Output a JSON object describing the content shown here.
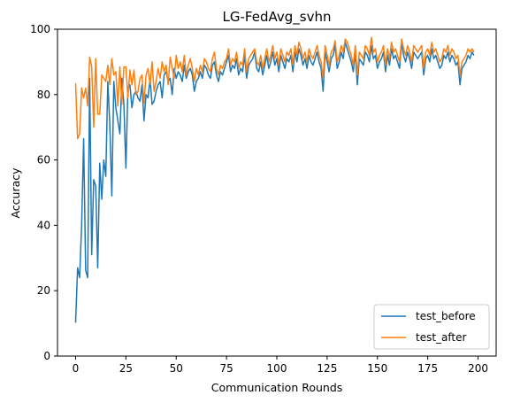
{
  "chart_data": {
    "type": "line",
    "title": "LG-FedAvg_svhn",
    "xlabel": "Communication Rounds",
    "ylabel": "Accuracy",
    "xlim": [
      -9,
      209
    ],
    "ylim": [
      0,
      100
    ],
    "xticks": [
      "0",
      "25",
      "50",
      "75",
      "100",
      "125",
      "150",
      "175",
      "200"
    ],
    "yticks": [
      "0",
      "20",
      "40",
      "60",
      "80",
      "100"
    ],
    "grid": false,
    "legend_position": "lower-right",
    "series": [
      {
        "name": "test_before",
        "color": "#1f77b4",
        "values": [
          10.2,
          27.0,
          24.0,
          40.0,
          66.5,
          26.2,
          24.0,
          85.0,
          31.0,
          54.0,
          52.0,
          27.0,
          59.0,
          48.0,
          60.0,
          55.0,
          84.0,
          71.0,
          49.0,
          84.0,
          76.0,
          72.0,
          68.0,
          85.0,
          77.0,
          57.5,
          82.0,
          83.0,
          76.0,
          80.0,
          81.0,
          79.0,
          78.0,
          83.0,
          72.0,
          80.0,
          79.0,
          85.0,
          77.0,
          78.0,
          81.0,
          83.0,
          84.0,
          79.0,
          86.0,
          87.0,
          84.0,
          85.0,
          80.0,
          88.0,
          85.0,
          87.0,
          86.0,
          84.0,
          89.0,
          85.0,
          87.0,
          88.0,
          86.0,
          81.0,
          84.0,
          85.0,
          87.0,
          85.0,
          89.0,
          88.0,
          86.0,
          85.0,
          89.0,
          90.0,
          86.0,
          84.0,
          87.0,
          86.0,
          88.0,
          90.0,
          92.0,
          87.0,
          89.0,
          88.0,
          91.0,
          86.0,
          88.0,
          87.0,
          92.0,
          85.0,
          89.0,
          90.0,
          91.0,
          93.0,
          88.0,
          87.0,
          90.0,
          86.0,
          89.0,
          92.0,
          88.0,
          90.0,
          93.0,
          89.0,
          91.0,
          87.0,
          92.0,
          90.0,
          88.0,
          91.0,
          90.0,
          92.0,
          87.0,
          93.0,
          90.0,
          94.0,
          92.0,
          89.0,
          91.0,
          88.0,
          92.0,
          90.0,
          89.0,
          91.0,
          93.0,
          90.0,
          88.0,
          81.0,
          93.0,
          90.0,
          87.0,
          91.0,
          92.0,
          95.0,
          88.0,
          90.0,
          93.0,
          91.0,
          96.0,
          94.0,
          92.0,
          90.0,
          87.0,
          93.0,
          83.0,
          91.0,
          90.0,
          89.0,
          93.0,
          92.0,
          90.0,
          95.0,
          91.0,
          92.0,
          88.0,
          90.0,
          91.0,
          93.0,
          87.0,
          92.0,
          89.0,
          94.0,
          91.0,
          92.0,
          90.0,
          88.0,
          96.0,
          92.0,
          90.0,
          93.0,
          91.0,
          88.0,
          93.0,
          92.0,
          91.0,
          92.0,
          93.0,
          86.0,
          91.0,
          92.0,
          90.0,
          94.0,
          91.0,
          92.0,
          90.0,
          88.0,
          89.0,
          92.0,
          91.0,
          93.0,
          90.0,
          92.0,
          91.0,
          89.0,
          90.0,
          83.0,
          88.0,
          89.0,
          90.0,
          92.0,
          91.0,
          93.0,
          92.0
        ],
        "comment": ""
      },
      {
        "name": "test_after",
        "color": "#ff7f0e",
        "values": [
          83.5,
          66.5,
          68.0,
          82.0,
          79.0,
          82.0,
          76.5,
          91.5,
          88.5,
          70.0,
          91.0,
          74.0,
          74.0,
          86.0,
          85.0,
          84.0,
          89.0,
          83.0,
          91.0,
          86.0,
          87.0,
          76.5,
          88.5,
          77.0,
          88.5,
          88.5,
          79.0,
          87.5,
          83.0,
          87.5,
          80.0,
          81.0,
          85.0,
          86.0,
          77.5,
          86.0,
          88.0,
          83.0,
          90.0,
          81.0,
          84.0,
          88.0,
          85.0,
          90.0,
          87.0,
          89.0,
          83.0,
          91.5,
          88.0,
          85.0,
          92.0,
          88.0,
          90.0,
          87.0,
          92.0,
          86.0,
          89.0,
          91.0,
          88.0,
          84.0,
          88.0,
          86.0,
          89.0,
          87.0,
          91.0,
          90.0,
          88.0,
          87.0,
          91.0,
          93.0,
          88.0,
          86.0,
          89.0,
          88.0,
          90.0,
          91.0,
          94.0,
          89.0,
          91.0,
          90.0,
          93.0,
          88.0,
          90.0,
          89.0,
          94.0,
          87.0,
          91.0,
          92.0,
          93.0,
          94.0,
          90.0,
          89.0,
          92.0,
          88.0,
          91.0,
          94.0,
          90.0,
          92.0,
          95.0,
          91.0,
          93.0,
          89.0,
          94.0,
          92.0,
          90.0,
          93.0,
          92.0,
          94.0,
          89.0,
          95.0,
          92.0,
          96.0,
          94.0,
          91.0,
          93.0,
          90.0,
          94.0,
          92.0,
          91.0,
          93.0,
          95.0,
          92.0,
          90.0,
          85.0,
          95.0,
          92.0,
          89.0,
          93.0,
          94.0,
          96.5,
          90.0,
          92.0,
          95.0,
          93.0,
          97.0,
          96.0,
          94.0,
          92.0,
          89.0,
          95.0,
          86.0,
          93.0,
          92.0,
          91.0,
          95.0,
          94.0,
          92.0,
          97.5,
          93.0,
          94.0,
          90.0,
          92.0,
          93.0,
          95.0,
          89.0,
          94.0,
          91.0,
          96.0,
          93.0,
          94.0,
          92.0,
          90.0,
          97.0,
          94.0,
          92.0,
          95.0,
          93.0,
          90.0,
          95.0,
          94.0,
          93.0,
          94.0,
          95.0,
          88.0,
          93.0,
          94.0,
          92.0,
          96.0,
          93.0,
          94.0,
          92.0,
          90.0,
          91.0,
          94.0,
          93.0,
          95.0,
          92.0,
          94.0,
          93.0,
          91.0,
          92.0,
          86.0,
          90.0,
          91.0,
          92.0,
          94.0,
          93.0,
          94.0,
          93.0
        ],
        "comment": ""
      }
    ]
  }
}
